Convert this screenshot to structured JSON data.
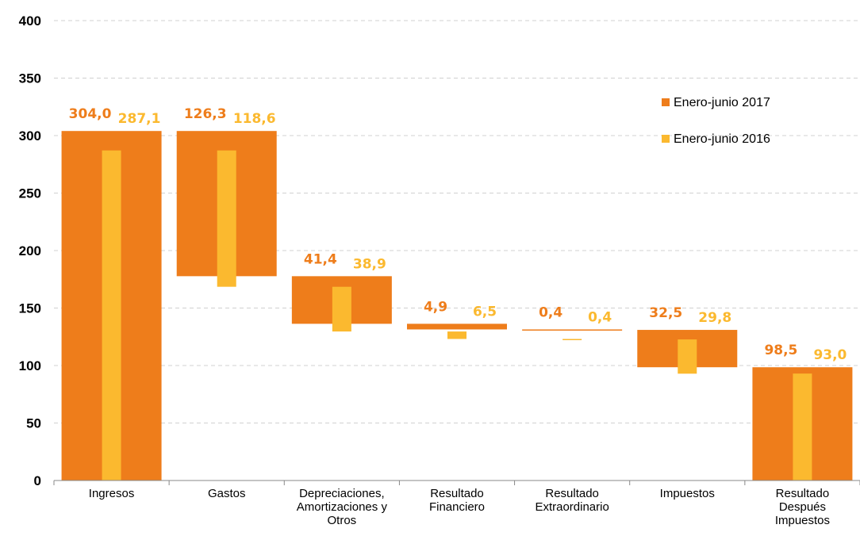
{
  "chart_data": {
    "type": "bar",
    "subtype": "waterfall",
    "title": "",
    "xlabel": "",
    "ylabel": "",
    "ylim": [
      0,
      400
    ],
    "yticks": [
      0,
      50,
      100,
      150,
      200,
      250,
      300,
      350,
      400
    ],
    "grid": "horizontal-dashed",
    "legend_position": "top-right",
    "categories": [
      [
        "Ingresos"
      ],
      [
        "Gastos"
      ],
      [
        "Depreciaciones,",
        "Amortizaciones y",
        "Otros"
      ],
      [
        "Resultado",
        "Financiero"
      ],
      [
        "Resultado",
        "Extraordinario"
      ],
      [
        "Impuestos"
      ],
      [
        "Resultado",
        "Después",
        "Impuestos"
      ]
    ],
    "series": [
      {
        "name": "Enero-junio 2017",
        "color": "#ee7d1b",
        "labels": [
          "304,0",
          "126,3",
          "41,4",
          "4,9",
          "0,4",
          "32,5",
          "98,5"
        ],
        "ranges": [
          [
            0,
            304.0
          ],
          [
            177.7,
            304.0
          ],
          [
            136.3,
            177.7
          ],
          [
            131.4,
            136.3
          ],
          [
            131.0,
            131.4
          ],
          [
            98.5,
            131.0
          ],
          [
            0,
            98.5
          ]
        ]
      },
      {
        "name": "Enero-junio 2016",
        "color": "#fbb92f",
        "labels": [
          "287,1",
          "118,6",
          "38,9",
          "6,5",
          "0,4",
          "29,8",
          "93,0"
        ],
        "ranges": [
          [
            0,
            287.1
          ],
          [
            168.5,
            287.1
          ],
          [
            129.6,
            168.5
          ],
          [
            123.1,
            129.6
          ],
          [
            122.7,
            123.1
          ],
          [
            92.9,
            122.7
          ],
          [
            0,
            93.0
          ]
        ]
      }
    ]
  }
}
